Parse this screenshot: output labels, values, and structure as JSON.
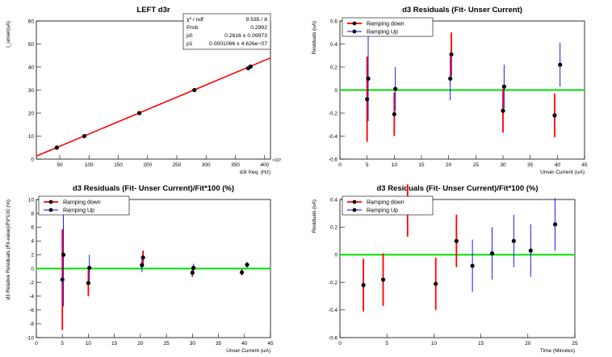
{
  "chart_data": [
    {
      "type": "scatter",
      "title": "LEFT d3r",
      "xlabel": "d3r freq. (Hz)",
      "ylabel": "I_unser(uA)",
      "x_exponent": "×10³",
      "xlim": [
        10,
        410
      ],
      "ylim": [
        0,
        60
      ],
      "xticks": [
        50,
        100,
        150,
        200,
        250,
        300,
        350,
        400
      ],
      "yticks": [
        0,
        10,
        20,
        30,
        40,
        50,
        60
      ],
      "points": [
        {
          "x": 45,
          "y": 5
        },
        {
          "x": 92,
          "y": 10
        },
        {
          "x": 186,
          "y": 20
        },
        {
          "x": 280,
          "y": 30
        },
        {
          "x": 372,
          "y": 39.5
        },
        {
          "x": 376,
          "y": 40.2
        }
      ],
      "fit": {
        "p0": 0.2616,
        "p1": 0.0001066
      },
      "fit_color": "#ff0000",
      "stats": [
        {
          "label": "χ² / ndf",
          "value": "9.535 / 8"
        },
        {
          "label": "Prob",
          "value": "0.2992"
        },
        {
          "label": "p0",
          "value": "0.2616 ± 0.09973"
        },
        {
          "label": "p1",
          "value": "0.0001066 ± 4.626e−07"
        }
      ]
    },
    {
      "type": "scatter",
      "title": "d3 Residuals (Fit- Unser Current)",
      "xlabel": "Unser Current (uA)",
      "ylabel": "Residuals (uA)",
      "xlim": [
        0,
        45
      ],
      "ylim": [
        -0.6,
        0.6
      ],
      "xticks": [
        0,
        5,
        10,
        15,
        20,
        25,
        30,
        35,
        40,
        45
      ],
      "yticks": [
        -0.6,
        -0.4,
        -0.2,
        0,
        0.2,
        0.4,
        0.6
      ],
      "zero_line_color": "#00dd00",
      "legend": {
        "position": "top-left",
        "entries": [
          "Ramping down",
          "Ramping Up"
        ]
      },
      "series": [
        {
          "name": "Ramping down",
          "color": "#ff0000",
          "points": [
            {
              "x": 5.0,
              "y": -0.08,
              "err": 0.37
            },
            {
              "x": 10.0,
              "y": -0.21,
              "err": 0.19
            },
            {
              "x": 20.5,
              "y": 0.31,
              "err": 0.19
            },
            {
              "x": 30.0,
              "y": -0.18,
              "err": 0.19
            },
            {
              "x": 39.5,
              "y": -0.22,
              "err": 0.19
            }
          ]
        },
        {
          "name": "Ramping Up",
          "color": "#0000ff",
          "points": [
            {
              "x": 5.2,
              "y": 0.1,
              "err": 0.37
            },
            {
              "x": 10.2,
              "y": 0.01,
              "err": 0.19
            },
            {
              "x": 20.3,
              "y": 0.1,
              "err": 0.19
            },
            {
              "x": 30.2,
              "y": 0.03,
              "err": 0.19
            },
            {
              "x": 40.5,
              "y": 0.22,
              "err": 0.19
            }
          ]
        }
      ]
    },
    {
      "type": "scatter",
      "title": "d3 Residuals (Fit- Unser Current)/Fit*100 (%)",
      "xlabel": "Unser Current (uA)",
      "ylabel": "d3 Relative Residuals (Fit-value)/Fit*100 (%)",
      "xlim": [
        0,
        45
      ],
      "ylim": [
        -10,
        10
      ],
      "xticks": [
        0,
        5,
        10,
        15,
        20,
        25,
        30,
        35,
        40,
        45
      ],
      "yticks": [
        -10,
        -8,
        -6,
        -4,
        -2,
        0,
        2,
        4,
        6,
        8,
        10
      ],
      "zero_line_color": "#00dd00",
      "legend": {
        "position": "top-left",
        "entries": [
          "Ramping down",
          "Ramping Up"
        ]
      },
      "series": [
        {
          "name": "Ramping down",
          "color": "#ff0000",
          "points": [
            {
              "x": 5.0,
              "y": -1.6,
              "err": 7.3
            },
            {
              "x": 10.0,
              "y": -2.1,
              "err": 1.9
            },
            {
              "x": 20.5,
              "y": 1.6,
              "err": 1.0
            },
            {
              "x": 30.0,
              "y": -0.6,
              "err": 0.6
            },
            {
              "x": 39.5,
              "y": -0.55,
              "err": 0.45
            }
          ]
        },
        {
          "name": "Ramping Up",
          "color": "#0000ff",
          "points": [
            {
              "x": 5.2,
              "y": 2.0,
              "err": 7.5
            },
            {
              "x": 10.2,
              "y": 0.1,
              "err": 1.9
            },
            {
              "x": 20.3,
              "y": 0.5,
              "err": 1.0
            },
            {
              "x": 30.2,
              "y": 0.1,
              "err": 0.6
            },
            {
              "x": 40.5,
              "y": 0.55,
              "err": 0.45
            }
          ]
        }
      ]
    },
    {
      "type": "scatter",
      "title": "d3 Residuals (Fit- Unser Current)/Fit*100 (%)",
      "xlabel": "Time (Minutes)",
      "ylabel": "Residuals (uA)",
      "xlim": [
        0,
        25
      ],
      "ylim": [
        -0.6,
        0.4
      ],
      "xticks": [
        0,
        5,
        10,
        15,
        20,
        25
      ],
      "yticks": [
        -0.6,
        -0.4,
        -0.2,
        0,
        0.2,
        0.4
      ],
      "zero_line_color": "#00dd00",
      "legend": {
        "position": "top-left",
        "entries": [
          "Ramping down",
          "Ramping Up"
        ]
      },
      "series": [
        {
          "name": "Ramping down",
          "color": "#ff0000",
          "points": [
            {
              "x": 2.5,
              "y": -0.22,
              "err": 0.19
            },
            {
              "x": 4.6,
              "y": -0.18,
              "err": 0.19
            },
            {
              "x": 7.2,
              "y": 0.32,
              "err": 0.19
            },
            {
              "x": 10.2,
              "y": -0.21,
              "err": 0.19
            },
            {
              "x": 12.4,
              "y": 0.1,
              "err": 0.19
            }
          ]
        },
        {
          "name": "Ramping Up",
          "color": "#0000ff",
          "points": [
            {
              "x": 14.1,
              "y": -0.08,
              "err": 0.19
            },
            {
              "x": 16.2,
              "y": 0.01,
              "err": 0.19
            },
            {
              "x": 18.5,
              "y": 0.1,
              "err": 0.19
            },
            {
              "x": 20.3,
              "y": 0.03,
              "err": 0.19
            },
            {
              "x": 22.9,
              "y": 0.22,
              "err": 0.19
            }
          ]
        }
      ]
    }
  ]
}
